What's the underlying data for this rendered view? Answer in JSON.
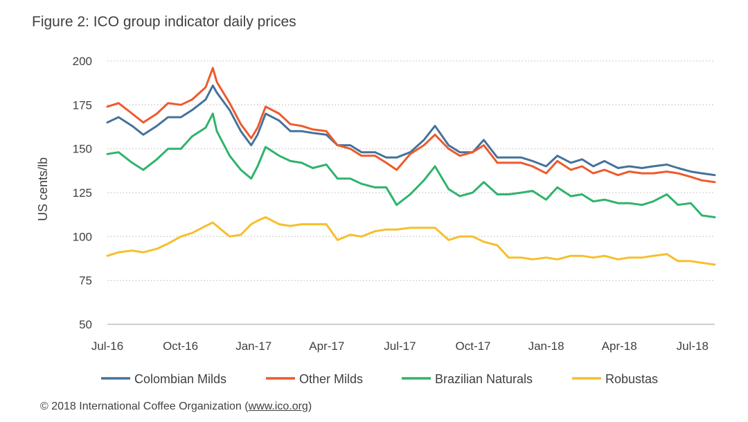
{
  "figure": {
    "title": "Figure 2: ICO group indicator daily prices",
    "copyright_prefix": "© 2018 International Coffee Organization (",
    "copyright_link": "www.ico.org",
    "copyright_suffix": ")"
  },
  "chart_data": {
    "type": "line",
    "title": "Figure 2: ICO group indicator daily prices",
    "xlabel": "",
    "ylabel": "US cents/lb",
    "ylim": [
      50,
      200
    ],
    "yticks": [
      50,
      75,
      100,
      125,
      150,
      175,
      200
    ],
    "xtick_labels": [
      "Jul-16",
      "Oct-16",
      "Jan-17",
      "Apr-17",
      "Jul-17",
      "Oct-17",
      "Jan-18",
      "Apr-18",
      "Jul-18"
    ],
    "x_range": [
      "2016-07-01",
      "2018-07-31"
    ],
    "grid": "horizontal-dotted",
    "legend": "bottom",
    "x": [
      "2016-07-01",
      "2016-07-15",
      "2016-08-01",
      "2016-08-15",
      "2016-09-01",
      "2016-09-15",
      "2016-10-01",
      "2016-10-15",
      "2016-11-01",
      "2016-11-10",
      "2016-11-15",
      "2016-12-01",
      "2016-12-15",
      "2016-12-28",
      "2017-01-05",
      "2017-01-15",
      "2017-02-01",
      "2017-02-15",
      "2017-03-01",
      "2017-03-15",
      "2017-04-01",
      "2017-04-15",
      "2017-05-01",
      "2017-05-15",
      "2017-06-01",
      "2017-06-15",
      "2017-06-28",
      "2017-07-15",
      "2017-08-01",
      "2017-08-15",
      "2017-09-01",
      "2017-09-15",
      "2017-10-01",
      "2017-10-15",
      "2017-11-01",
      "2017-11-15",
      "2017-12-01",
      "2017-12-15",
      "2018-01-01",
      "2018-01-15",
      "2018-02-01",
      "2018-02-15",
      "2018-03-01",
      "2018-03-15",
      "2018-04-01",
      "2018-04-15",
      "2018-05-01",
      "2018-05-15",
      "2018-06-01",
      "2018-06-15",
      "2018-07-01",
      "2018-07-15",
      "2018-07-31"
    ],
    "series": [
      {
        "name": "Colombian Milds",
        "color": "#44729a",
        "values": [
          165,
          168,
          163,
          158,
          163,
          168,
          168,
          172,
          178,
          186,
          182,
          172,
          160,
          152,
          158,
          170,
          166,
          160,
          160,
          159,
          158,
          152,
          152,
          148,
          148,
          145,
          145,
          148,
          155,
          163,
          152,
          148,
          148,
          155,
          145,
          145,
          145,
          143,
          140,
          146,
          142,
          144,
          140,
          143,
          139,
          140,
          139,
          140,
          141,
          139,
          137,
          136,
          135
        ]
      },
      {
        "name": "Other Milds",
        "color": "#ed5a2b",
        "values": [
          174,
          176,
          170,
          165,
          170,
          176,
          175,
          178,
          185,
          196,
          188,
          176,
          164,
          156,
          162,
          174,
          170,
          164,
          163,
          161,
          160,
          152,
          150,
          146,
          146,
          142,
          138,
          147,
          152,
          158,
          150,
          146,
          148,
          152,
          142,
          142,
          142,
          140,
          136,
          143,
          138,
          140,
          136,
          138,
          135,
          137,
          136,
          136,
          137,
          136,
          134,
          132,
          131
        ]
      },
      {
        "name": "Brazilian Naturals",
        "color": "#2fb36b",
        "values": [
          147,
          148,
          142,
          138,
          144,
          150,
          150,
          157,
          162,
          170,
          160,
          146,
          138,
          133,
          140,
          151,
          146,
          143,
          142,
          139,
          141,
          133,
          133,
          130,
          128,
          128,
          118,
          124,
          132,
          140,
          127,
          123,
          125,
          131,
          124,
          124,
          125,
          126,
          121,
          128,
          123,
          124,
          120,
          121,
          119,
          119,
          118,
          120,
          124,
          118,
          119,
          112,
          111
        ]
      },
      {
        "name": "Robustas",
        "color": "#f6bf2b",
        "values": [
          89,
          91,
          92,
          91,
          93,
          96,
          100,
          102,
          106,
          108,
          106,
          100,
          101,
          107,
          109,
          111,
          107,
          106,
          107,
          107,
          107,
          98,
          101,
          100,
          103,
          104,
          104,
          105,
          105,
          105,
          98,
          100,
          100,
          97,
          95,
          88,
          88,
          87,
          88,
          87,
          89,
          89,
          88,
          89,
          87,
          88,
          88,
          89,
          90,
          86,
          86,
          85,
          84
        ]
      }
    ]
  }
}
